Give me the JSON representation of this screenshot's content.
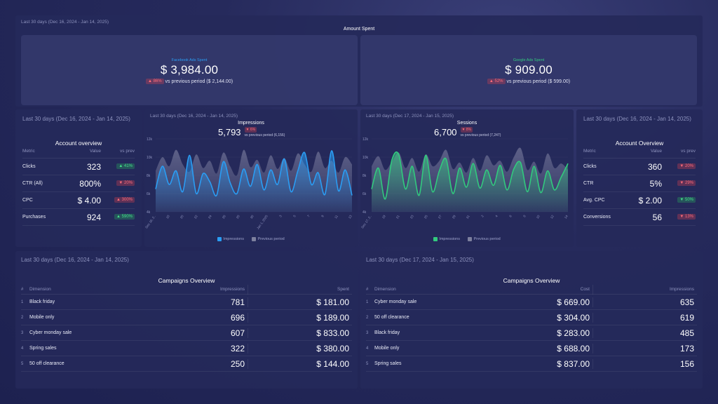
{
  "amount_spent": {
    "period": "Last 30 days (Dec 16, 2024 - Jan 14, 2025)",
    "title": "Amount Spent",
    "facebook": {
      "label": "Facebook Ads Spent",
      "value": "$ 3,984.00",
      "change": "86%",
      "compare": "vs previous period ($ 2,144.00)"
    },
    "google": {
      "label": "Google Ads Spent",
      "value": "$ 909.00",
      "change": "52%",
      "compare": "vs previous period ($ 599.00)"
    }
  },
  "fb_overview": {
    "period": "Last 30 days (Dec 16, 2024 - Jan 14, 2025)",
    "title": "Account overview",
    "headers": [
      "Metric",
      "Value",
      "vs prev"
    ],
    "rows": [
      {
        "metric": "Clicks",
        "value": "323",
        "change": "41%"
      },
      {
        "metric": "CTR (All)",
        "value": "800%",
        "change": "20%"
      },
      {
        "metric": "CPC",
        "value": "$ 4.00",
        "change": "300%"
      },
      {
        "metric": "Purchases",
        "value": "924",
        "change": "590%"
      }
    ]
  },
  "google_overview": {
    "period": "Last 30 days (Dec 16, 2024 - Jan 14, 2025)",
    "title": "Account Overview",
    "headers": [
      "Metric",
      "Value",
      "vs prev"
    ],
    "rows": [
      {
        "metric": "Clicks",
        "value": "360",
        "change": "20%"
      },
      {
        "metric": "CTR",
        "value": "5%",
        "change": "29%"
      },
      {
        "metric": "Avg. CPC",
        "value": "$ 2.00",
        "change": "50%"
      },
      {
        "metric": "Conversions",
        "value": "56",
        "change": "13%"
      }
    ]
  },
  "impressions_chart": {
    "period": "Last 30 days (Dec 16, 2024 - Jan 14, 2025)",
    "title": "Impressions",
    "value": "5,793",
    "change": "6%",
    "compare": "vs previous period (6,156)",
    "legend_current": "Impressions",
    "legend_previous": "Previous period",
    "color": "#2a9df4"
  },
  "sessions_chart": {
    "period": "Last 30 days (Dec 17, 2024 - Jan 15, 2025)",
    "title": "Sessions",
    "value": "6,700",
    "change": "8%",
    "compare": "vs previous period (7,247)",
    "legend_current": "Impressions",
    "legend_previous": "Previous period",
    "color": "#32c97e"
  },
  "chart_data": [
    {
      "type": "area",
      "title": "Impressions",
      "ylim": [
        4000,
        12000
      ],
      "yticks": [
        "12k",
        "10k",
        "8k",
        "6k",
        "4k"
      ],
      "ytick_values": [
        12000,
        10000,
        8000,
        6000,
        4000
      ],
      "xticks": [
        "Dec 16, 2..",
        "18",
        "20",
        "22",
        "24",
        "26",
        "28",
        "30",
        "Jan 1, 2025",
        "3",
        "5",
        "7",
        "9",
        "11",
        "13"
      ],
      "series": [
        {
          "name": "Impressions",
          "values": [
            6500,
            9000,
            7000,
            8500,
            6200,
            10200,
            6000,
            8200,
            7300,
            5800,
            9500,
            7200,
            6000,
            8700,
            6800,
            9200,
            6400,
            8600,
            7000,
            9800,
            6200,
            8500,
            10500,
            7000,
            8300,
            5900,
            10700,
            6300,
            8600,
            5800
          ]
        },
        {
          "name": "Previous period",
          "values": [
            8500,
            10000,
            9000,
            10800,
            9200,
            8400,
            10300,
            8800,
            9600,
            8200,
            10500,
            9000,
            8000,
            10800,
            8900,
            9700,
            8300,
            10200,
            8700,
            9900,
            8500,
            10400,
            9200,
            8400,
            10600,
            8800,
            9600,
            8300,
            10000,
            9200
          ]
        }
      ]
    },
    {
      "type": "area",
      "title": "Sessions",
      "ylim": [
        4000,
        12000
      ],
      "yticks": [
        "12k",
        "10k",
        "8k",
        "6k",
        "4k"
      ],
      "ytick_values": [
        12000,
        10000,
        8000,
        6000,
        4000
      ],
      "xticks": [
        "Dec 17, 2..",
        "19",
        "21",
        "23",
        "25",
        "27",
        "29",
        "31",
        "2",
        "4",
        "6",
        "8",
        "10",
        "12",
        "14"
      ],
      "series": [
        {
          "name": "Impressions",
          "values": [
            6500,
            8800,
            5400,
            9700,
            10300,
            6500,
            9000,
            5800,
            10200,
            6200,
            8500,
            9800,
            6000,
            8800,
            6700,
            9300,
            6600,
            8600,
            6900,
            9100,
            6400,
            8700,
            9400,
            6200,
            9000,
            6100,
            8500,
            6400,
            7800,
            9300
          ]
        },
        {
          "name": "Previous period",
          "values": [
            9000,
            10100,
            8600,
            9500,
            10500,
            8800,
            9900,
            8400,
            10300,
            9000,
            9600,
            10800,
            8700,
            9400,
            8300,
            9900,
            8500,
            10200,
            9100,
            9600,
            8400,
            10000,
            11000,
            8600,
            9500,
            8200,
            10400,
            8800,
            9300,
            8600
          ]
        }
      ]
    }
  ],
  "fb_campaigns": {
    "period": "Last 30 days (Dec 16, 2024 - Jan 14, 2025)",
    "title": "Campaigns Overview",
    "headers": [
      "#",
      "Dimension",
      "Impressions",
      "Spent"
    ],
    "rows": [
      {
        "n": "1",
        "dim": "Black friday",
        "a": "781",
        "b": "$ 181.00"
      },
      {
        "n": "2",
        "dim": "Mobile only",
        "a": "696",
        "b": "$ 189.00"
      },
      {
        "n": "3",
        "dim": "Cyber monday sale",
        "a": "607",
        "b": "$ 833.00"
      },
      {
        "n": "4",
        "dim": "Spring sales",
        "a": "322",
        "b": "$ 380.00"
      },
      {
        "n": "5",
        "dim": "50 off clearance",
        "a": "250",
        "b": "$ 144.00"
      }
    ]
  },
  "google_campaigns": {
    "period": "Last 30 days (Dec 17, 2024 - Jan 15, 2025)",
    "title": "Campaigns Overview",
    "headers": [
      "#",
      "Dimension",
      "Cost",
      "Impressions"
    ],
    "rows": [
      {
        "n": "1",
        "dim": "Cyber monday sale",
        "a": "$ 669.00",
        "b": "635"
      },
      {
        "n": "2",
        "dim": "50 off clearance",
        "a": "$ 304.00",
        "b": "619"
      },
      {
        "n": "3",
        "dim": "Black friday",
        "a": "$ 283.00",
        "b": "485"
      },
      {
        "n": "4",
        "dim": "Mobile only",
        "a": "$ 688.00",
        "b": "173"
      },
      {
        "n": "5",
        "dim": "Spring sales",
        "a": "$ 837.00",
        "b": "156"
      }
    ]
  },
  "colors": {
    "bad": "#ff6d7a",
    "good": "#45e08a",
    "fb_blue": "#2a9df4",
    "google_green": "#32c97e"
  }
}
